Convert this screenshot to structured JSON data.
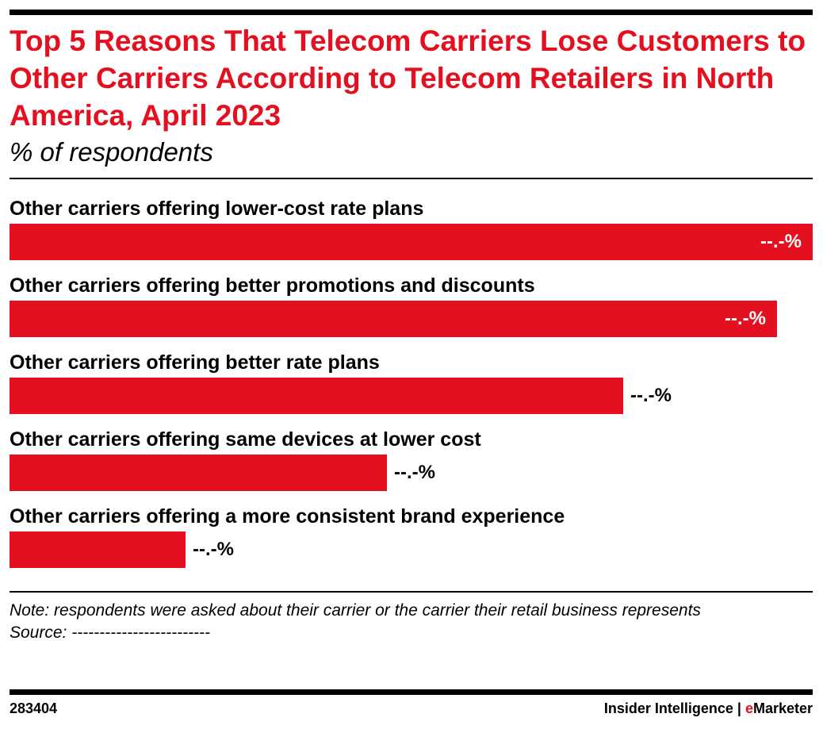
{
  "title": "Top 5 Reasons That Telecom Carriers Lose Customers to Other Carriers According to Telecom Retailers in North America, April 2023",
  "subtitle": "% of respondents",
  "chart_data": {
    "type": "bar",
    "orientation": "horizontal",
    "categories": [
      "Other carriers offering lower-cost rate plans",
      "Other carriers offering better promotions and discounts",
      "Other carriers offering better rate plans",
      "Other carriers offering same devices at lower cost",
      "Other carriers offering a more consistent brand experience"
    ],
    "values": [
      100,
      95.6,
      76.4,
      47.0,
      21.9
    ],
    "value_labels": [
      "--.-%",
      "--.-%",
      "--.-%",
      "--.-%",
      "--.-%"
    ],
    "xlim": [
      0,
      100
    ],
    "grid": false,
    "legend": "none",
    "bar_color": "#e5101f"
  },
  "footnote": {
    "note": "Note: respondents were asked about their carrier or the carrier their retail business represents",
    "source": "Source: -------------------------"
  },
  "footer": {
    "chart_id": "283404",
    "brand_prefix": "Insider Intelligence | ",
    "brand_e": "e",
    "brand_rest": "Marketer"
  },
  "colors": {
    "accent": "#e5101f",
    "text": "#000000",
    "background": "#ffffff"
  }
}
